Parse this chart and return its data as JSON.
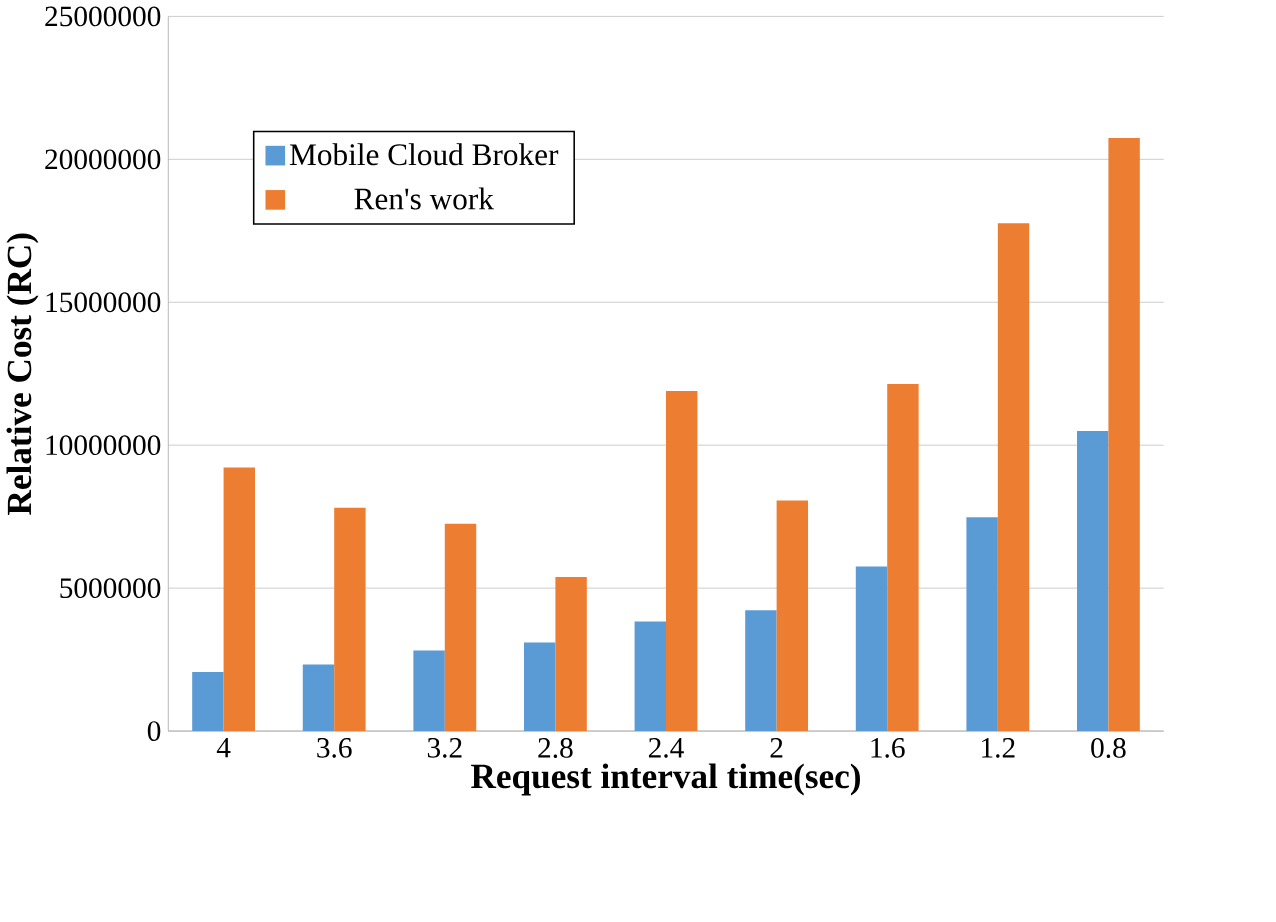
{
  "chart_data": {
    "type": "bar",
    "xlabel": "Request interval time(sec)",
    "ylabel": "Relative Cost (RC)",
    "categories": [
      "4",
      "3.6",
      "3.2",
      "2.8",
      "2.4",
      "2",
      "1.6",
      "1.2",
      "0.8"
    ],
    "series": [
      {
        "name": "Mobile Cloud Broker",
        "color": "#5b9bd5",
        "values": [
          2070000,
          2330000,
          2820000,
          3100000,
          3830000,
          4230000,
          5760000,
          7480000,
          10500000
        ]
      },
      {
        "name": "Ren's work",
        "color": "#ed7d31",
        "values": [
          9220000,
          7810000,
          7250000,
          5390000,
          11900000,
          8070000,
          12140000,
          17760000,
          20750000
        ]
      }
    ],
    "ylim": [
      0,
      25000000
    ],
    "yticks": [
      0,
      5000000,
      10000000,
      15000000,
      20000000,
      25000000
    ],
    "grid": "y",
    "legend": "top left"
  }
}
